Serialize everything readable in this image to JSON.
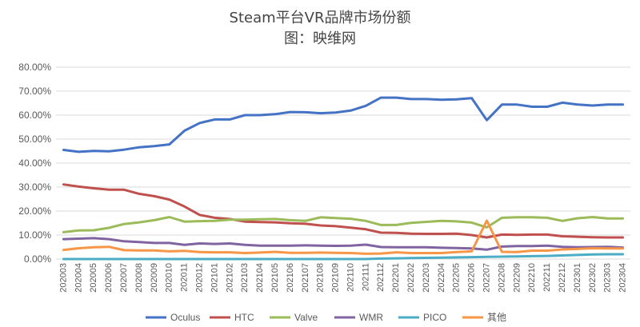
{
  "chart_data": {
    "type": "line",
    "title": "Steam平台VR品牌市场份额",
    "subtitle": "图：映维网",
    "xlabel": "",
    "ylabel": "",
    "ylim": [
      0,
      80
    ],
    "y_ticks": [
      "0.00%",
      "10.00%",
      "20.00%",
      "30.00%",
      "40.00%",
      "50.00%",
      "60.00%",
      "70.00%",
      "80.00%"
    ],
    "grid": true,
    "legend_position": "bottom",
    "categories": [
      "202003",
      "202004",
      "202005",
      "202006",
      "202007",
      "202008",
      "202009",
      "202010",
      "202011",
      "202012",
      "202101",
      "202102",
      "202103",
      "202104",
      "202105",
      "202106",
      "202107",
      "202108",
      "202109",
      "202110",
      "202111",
      "202112",
      "202201",
      "202202",
      "202203",
      "202204",
      "202205",
      "202206",
      "202207",
      "202208",
      "202209",
      "202210",
      "202211",
      "202212",
      "202301",
      "202302",
      "202303",
      "202304"
    ],
    "series": [
      {
        "name": "Oculus",
        "color": "#4472C4",
        "values": [
          45.5,
          44.7,
          45.1,
          44.9,
          45.6,
          46.6,
          47.1,
          47.8,
          53.5,
          56.7,
          58.2,
          58.2,
          60.0,
          60.0,
          60.4,
          61.3,
          61.2,
          60.8,
          61.1,
          61.9,
          63.9,
          67.3,
          67.3,
          66.7,
          66.7,
          66.4,
          66.6,
          67.1,
          57.9,
          64.4,
          64.4,
          63.5,
          63.5,
          65.2,
          64.4,
          64.0,
          64.4,
          64.4
        ]
      },
      {
        "name": "HTC",
        "color": "#C0504D",
        "values": [
          31.1,
          30.2,
          29.5,
          28.9,
          28.9,
          27.2,
          26.2,
          24.8,
          21.9,
          18.4,
          17.2,
          16.7,
          15.6,
          15.4,
          15.3,
          14.9,
          14.7,
          14.0,
          13.7,
          13.1,
          12.4,
          11.0,
          10.9,
          10.6,
          10.5,
          10.5,
          10.6,
          10.0,
          9.0,
          10.2,
          10.1,
          10.2,
          10.2,
          9.5,
          9.3,
          9.1,
          9.0,
          9.0
        ]
      },
      {
        "name": "Valve",
        "color": "#9BBB59",
        "values": [
          11.2,
          11.9,
          12.0,
          13.0,
          14.6,
          15.3,
          16.2,
          17.5,
          15.6,
          15.8,
          15.9,
          16.4,
          16.4,
          16.6,
          16.7,
          16.2,
          15.9,
          17.4,
          17.1,
          16.8,
          15.9,
          14.2,
          14.2,
          15.1,
          15.5,
          15.9,
          15.7,
          15.2,
          13.2,
          17.2,
          17.4,
          17.4,
          17.2,
          15.9,
          17.0,
          17.5,
          16.9,
          16.9
        ]
      },
      {
        "name": "WMR",
        "color": "#8064A2",
        "values": [
          8.3,
          8.5,
          8.7,
          8.3,
          7.4,
          7.1,
          6.7,
          6.7,
          5.9,
          6.5,
          6.3,
          6.5,
          5.9,
          5.6,
          5.6,
          5.6,
          5.7,
          5.6,
          5.5,
          5.6,
          6.0,
          5.0,
          4.9,
          4.9,
          4.9,
          4.7,
          4.6,
          4.4,
          3.9,
          5.2,
          5.4,
          5.4,
          5.6,
          5.1,
          4.9,
          5.0,
          5.1,
          4.8
        ]
      },
      {
        "name": "PICO",
        "color": "#4BACC6",
        "values": [
          0.0,
          0.0,
          0.0,
          0.0,
          0.0,
          0.0,
          0.0,
          0.0,
          0.0,
          0.0,
          0.0,
          0.0,
          0.0,
          0.0,
          0.0,
          0.0,
          0.0,
          0.0,
          0.0,
          0.0,
          0.0,
          0.2,
          0.3,
          0.4,
          0.5,
          0.6,
          0.7,
          0.8,
          0.9,
          1.0,
          1.1,
          1.2,
          1.3,
          1.5,
          1.7,
          1.9,
          2.0,
          2.0
        ]
      },
      {
        "name": "其他",
        "color": "#F79646",
        "values": [
          3.8,
          4.5,
          4.9,
          5.1,
          3.7,
          3.6,
          3.6,
          3.2,
          3.4,
          2.9,
          2.8,
          2.8,
          2.5,
          2.7,
          3.0,
          2.6,
          2.6,
          2.7,
          2.6,
          2.5,
          2.2,
          2.3,
          2.8,
          2.5,
          2.5,
          2.5,
          2.9,
          3.2,
          16.0,
          3.0,
          2.9,
          3.5,
          3.5,
          4.0,
          4.2,
          4.5,
          4.4,
          4.4
        ]
      }
    ]
  }
}
